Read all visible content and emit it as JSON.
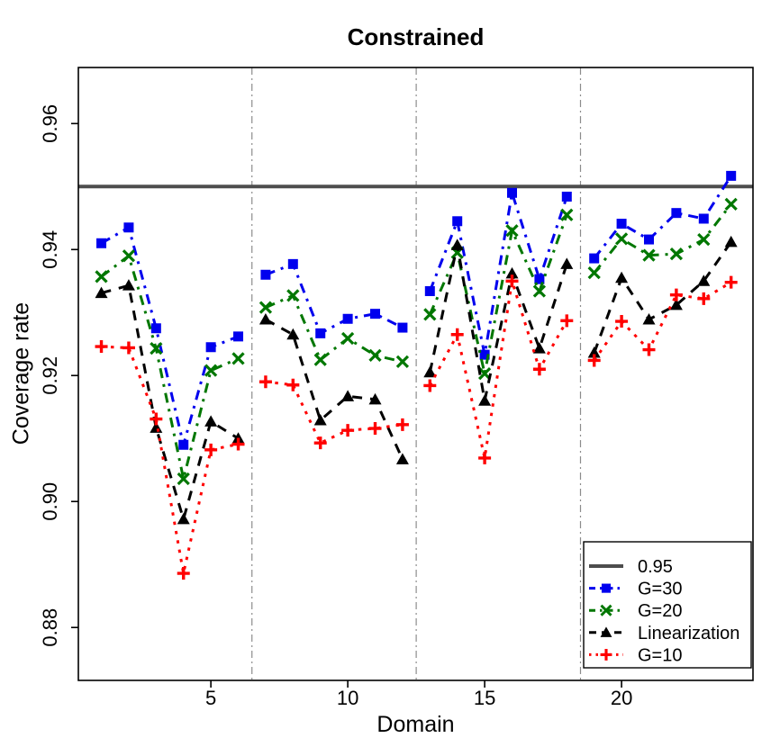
{
  "title": "Constrained",
  "chart_data": {
    "type": "line",
    "title": "Constrained",
    "xlabel": "Domain",
    "ylabel": "Coverage rate",
    "x": [
      1,
      2,
      3,
      4,
      5,
      6,
      7,
      8,
      9,
      10,
      11,
      12,
      13,
      14,
      15,
      16,
      17,
      18,
      19,
      20,
      21,
      22,
      23,
      24
    ],
    "xlim": [
      0.16,
      24.8
    ],
    "ylim": [
      0.8716,
      0.9689
    ],
    "x_ticks": [
      5,
      10,
      15,
      20
    ],
    "x_tick_labels": [
      "5",
      "10",
      "15",
      "20"
    ],
    "y_ticks": [
      0.88,
      0.9,
      0.92,
      0.94,
      0.96
    ],
    "y_tick_labels": [
      "0.88",
      "0.90",
      "0.92",
      "0.94",
      "0.96"
    ],
    "grid": false,
    "group_dividers": [
      6.5,
      12.5,
      18.5
    ],
    "divider_color": "#8c8c8c",
    "reference_line": {
      "label": "0.95",
      "value": 0.95,
      "color": "#4d4d4d"
    },
    "legend_position": "bottom-right",
    "legend_labels": [
      "0.95",
      "G=30",
      "G=20",
      "Linearization",
      "G=10"
    ],
    "series": [
      {
        "name": "G=30",
        "color": "#0000ee",
        "marker": "square",
        "linestyle": "dotdash",
        "values": [
          0.941,
          0.9435,
          0.9275,
          0.909,
          0.9245,
          0.9262,
          0.936,
          0.9377,
          0.9267,
          0.929,
          0.9298,
          0.9276,
          0.9334,
          0.9445,
          0.9233,
          0.949,
          0.9353,
          0.9484,
          0.9386,
          0.9441,
          0.9416,
          0.9458,
          0.9449,
          0.9517
        ]
      },
      {
        "name": "G=20",
        "color": "#007700",
        "marker": "x",
        "linestyle": "dotdash",
        "values": [
          0.9357,
          0.939,
          0.9243,
          0.9036,
          0.9208,
          0.9227,
          0.9308,
          0.9327,
          0.9225,
          0.9259,
          0.9232,
          0.9222,
          0.9297,
          0.9395,
          0.9203,
          0.943,
          0.9334,
          0.9455,
          0.9363,
          0.9417,
          0.9391,
          0.9393,
          0.9416,
          0.9472
        ]
      },
      {
        "name": "Linearization",
        "color": "#000000",
        "marker": "triangle",
        "linestyle": "dashed",
        "values": [
          0.9331,
          0.9343,
          0.9117,
          0.8972,
          0.9127,
          0.91,
          0.9289,
          0.9265,
          0.9129,
          0.9167,
          0.9162,
          0.9067,
          0.9205,
          0.9407,
          0.916,
          0.9362,
          0.9243,
          0.9377,
          0.9236,
          0.9355,
          0.9289,
          0.9312,
          0.935,
          0.9412
        ]
      },
      {
        "name": "G=10",
        "color": "#ff0000",
        "marker": "plus",
        "linestyle": "dotted",
        "values": [
          0.9246,
          0.9244,
          0.9131,
          0.8886,
          0.9082,
          0.9091,
          0.919,
          0.9185,
          0.9093,
          0.9113,
          0.9116,
          0.9122,
          0.9184,
          0.9265,
          0.9069,
          0.935,
          0.921,
          0.9287,
          0.9224,
          0.9286,
          0.9241,
          0.9328,
          0.9322,
          0.9348
        ]
      }
    ]
  }
}
